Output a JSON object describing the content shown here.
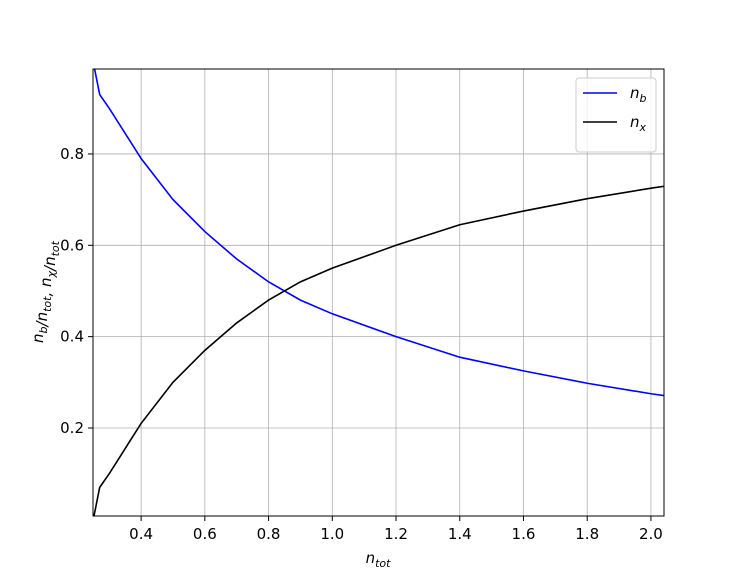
{
  "chart_data": {
    "type": "line",
    "xlabel": [
      "n",
      {
        "sub": "tot"
      }
    ],
    "ylabel": [
      "n",
      {
        "sub": "b"
      },
      "/n",
      {
        "sub": "tot"
      },
      ", n",
      {
        "sub": "χ"
      },
      "/n",
      {
        "sub": "tot"
      }
    ],
    "x": [
      0.25,
      0.27,
      0.3,
      0.4,
      0.5,
      0.6,
      0.7,
      0.8,
      0.9,
      1.0,
      1.2,
      1.4,
      1.6,
      1.8,
      2.0,
      2.05
    ],
    "series": [
      {
        "name": [
          "n",
          {
            "sub": "b"
          }
        ],
        "color": "#0000ff",
        "values": [
          1.0,
          0.93,
          0.9,
          0.79,
          0.7,
          0.63,
          0.57,
          0.52,
          0.48,
          0.45,
          0.4,
          0.355,
          0.325,
          0.298,
          0.275,
          0.27
        ]
      },
      {
        "name": [
          "n",
          {
            "sub": "x"
          }
        ],
        "color": "#000000",
        "values": [
          0.0,
          0.07,
          0.1,
          0.21,
          0.3,
          0.37,
          0.43,
          0.48,
          0.52,
          0.55,
          0.6,
          0.645,
          0.675,
          0.702,
          0.725,
          0.73
        ]
      }
    ],
    "xlim": [
      0.249,
      2.041
    ],
    "ylim": [
      0.0073,
      0.986
    ],
    "xticks": [
      0.4,
      0.6,
      0.8,
      {
        "value": 1,
        "label": "1.0"
      },
      1.2,
      1.4,
      1.6,
      1.8,
      {
        "value": 2,
        "label": "2.0"
      }
    ],
    "yticks": [
      0.2,
      0.4,
      0.6,
      0.8
    ],
    "grid": true,
    "legend": "upper-right"
  }
}
